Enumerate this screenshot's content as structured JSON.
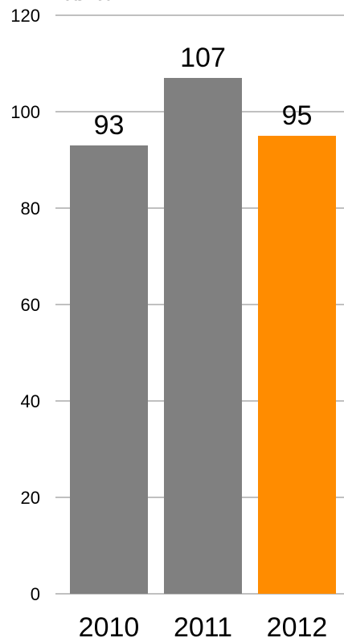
{
  "chart_data": {
    "type": "bar",
    "title": "Талант",
    "categories": [
      "2010",
      "2011",
      "2012"
    ],
    "values": [
      93,
      107,
      95
    ],
    "data_labels": [
      "93",
      "107",
      "95"
    ],
    "ylim": [
      0,
      120
    ],
    "yticks": [
      0,
      20,
      40,
      60,
      80,
      100,
      120
    ],
    "ytick_labels": [
      "0",
      "20",
      "40",
      "60",
      "80",
      "100",
      "120"
    ],
    "xlabel": "",
    "ylabel": "",
    "grid": true,
    "legend": "none",
    "bar_colors": [
      "#808080",
      "#808080",
      "#ff8c00"
    ],
    "grid_color": "#808080",
    "text_color": "#000000"
  }
}
